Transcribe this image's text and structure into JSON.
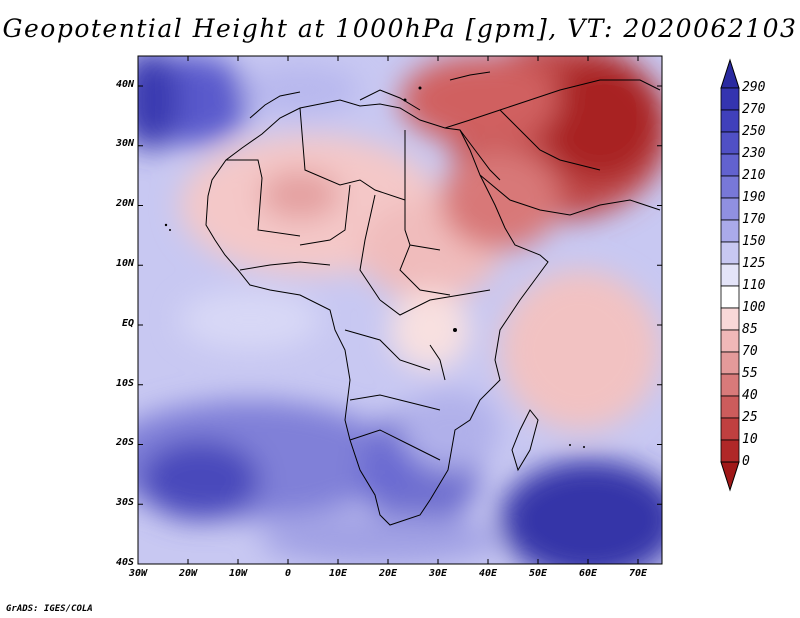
{
  "title": "Geopotential Height at 1000hPa [gpm], VT: 2020062103",
  "footer": "GrADS: IGES/COLA",
  "lat_labels": [
    "40N",
    "30N",
    "20N",
    "10N",
    "EQ",
    "10S",
    "20S",
    "30S",
    "40S"
  ],
  "lon_labels": [
    "30W",
    "20W",
    "10W",
    "0",
    "10E",
    "20E",
    "30E",
    "40E",
    "50E",
    "60E",
    "70E"
  ],
  "colorbar": {
    "labels": [
      "290",
      "270",
      "250",
      "230",
      "210",
      "190",
      "170",
      "150",
      "125",
      "110",
      "100",
      "85",
      "70",
      "55",
      "40",
      "25",
      "10",
      "0"
    ],
    "colors": [
      "#2a2aa0",
      "#3434b0",
      "#4040bb",
      "#5050c5",
      "#6262cf",
      "#7878d8",
      "#9090e1",
      "#aaaaea",
      "#c8c8f2",
      "#e4e4f8",
      "#ffffff",
      "#f8d8d8",
      "#f0b8b8",
      "#e49a9a",
      "#d87a7a",
      "#cc5c5c",
      "#c04040",
      "#b02828",
      "#a01818"
    ]
  }
}
